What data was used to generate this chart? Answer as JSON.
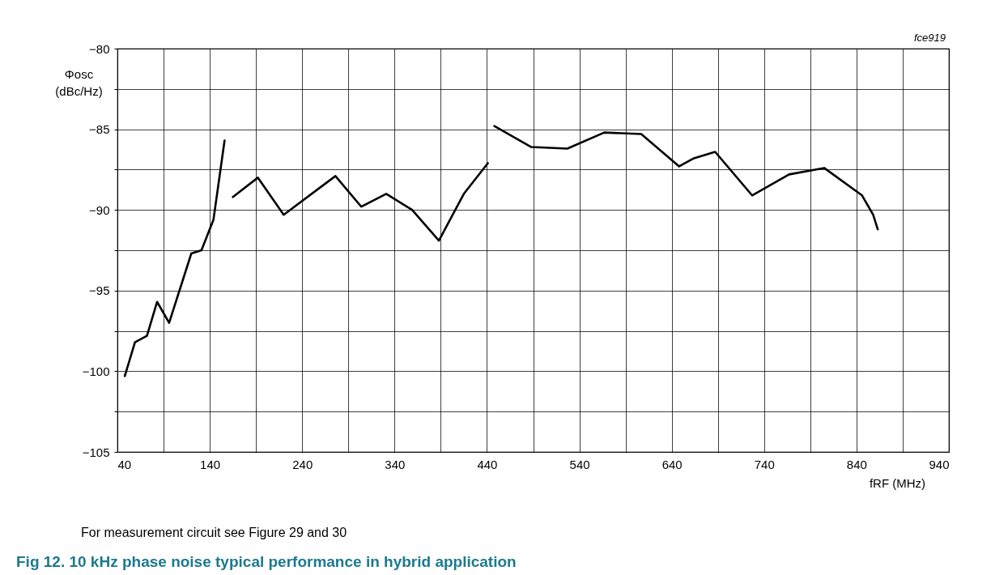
{
  "chart_data": {
    "type": "line",
    "title": "Fig 12. 10 kHz phase noise typical performance in hybrid application",
    "xlabel": "fRF (MHz)",
    "ylabel": "Φosc (dBc/Hz)",
    "annotations": [
      "fce919",
      "For measurement circuit see Figure 29 and 30"
    ],
    "series": [
      {
        "color": "#000000",
        "x": [
          48,
          59,
          72,
          83,
          96,
          120,
          131,
          144,
          156
        ],
        "values": [
          -100.3,
          -98.2,
          -97.8,
          -95.7,
          -97.0,
          -92.7,
          -92.5,
          -90.6,
          -85.7
        ]
      },
      {
        "color": "#000000",
        "x": [
          165,
          192,
          220,
          276,
          304,
          331,
          359,
          388,
          415,
          441
        ],
        "values": [
          -89.2,
          -88.0,
          -90.3,
          -87.9,
          -89.8,
          -89.0,
          -90.0,
          -91.9,
          -89.0,
          -87.1
        ]
      },
      {
        "color": "#000000",
        "x": [
          448,
          488,
          527,
          567,
          607,
          648,
          664,
          687,
          727,
          767,
          805,
          846,
          858,
          863
        ],
        "values": [
          -84.8,
          -86.1,
          -86.2,
          -85.2,
          -85.3,
          -87.3,
          -86.8,
          -86.4,
          -89.1,
          -87.8,
          -87.4,
          -89.1,
          -90.3,
          -91.2
        ]
      }
    ],
    "xlim": [
      40,
      940
    ],
    "ylim": [
      -105,
      -80
    ],
    "xticks": [
      40,
      {
        "value": 90,
        "label": null
      },
      140,
      {
        "value": 190,
        "label": null
      },
      240,
      {
        "value": 290,
        "label": null
      },
      340,
      {
        "value": 390,
        "label": null
      },
      440,
      {
        "value": 490,
        "label": null
      },
      540,
      {
        "value": 590,
        "label": null
      },
      640,
      {
        "value": 690,
        "label": null
      },
      740,
      {
        "value": 790,
        "label": null
      },
      840,
      {
        "value": 890,
        "label": null
      },
      940
    ],
    "yticks": [
      {
        "value": -105,
        "label": "−105"
      },
      {
        "value": -102.5,
        "label": null
      },
      {
        "value": -100,
        "label": "−100"
      },
      {
        "value": -97.5,
        "label": null
      },
      {
        "value": -95,
        "label": "−95"
      },
      {
        "value": -92.5,
        "label": null
      },
      {
        "value": -90,
        "label": "−90"
      },
      {
        "value": -87.5,
        "label": null
      },
      {
        "value": -85,
        "label": "−85"
      },
      {
        "value": -82.5,
        "label": null
      },
      {
        "value": -80,
        "label": "−80"
      }
    ],
    "grid": true,
    "line_style": "solid"
  }
}
